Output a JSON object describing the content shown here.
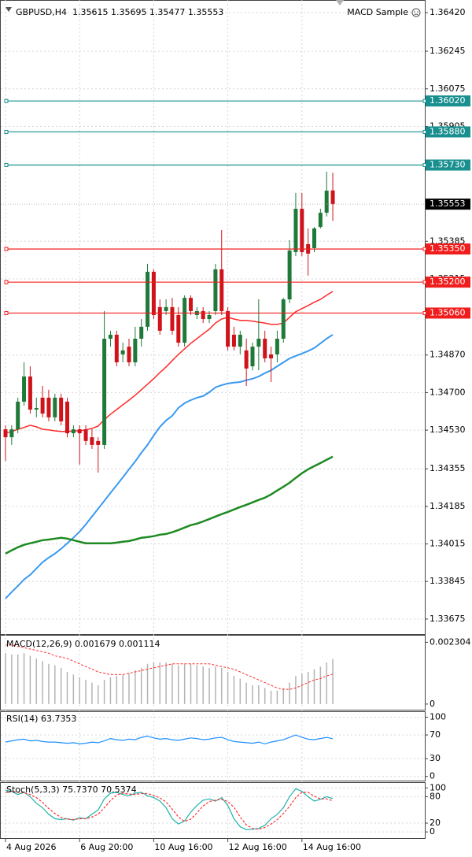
{
  "chart_data": [
    {
      "type": "candlestick",
      "title": "GBPUSD,H4  1.35615 1.35695 1.35477 1.35553",
      "expert": "MACD Sample",
      "categories": [
        "4 Aug 2026",
        null,
        null,
        null,
        null,
        null,
        null,
        null,
        null,
        null,
        null,
        null,
        "6 Aug 20:00",
        null,
        null,
        null,
        null,
        null,
        null,
        null,
        null,
        null,
        null,
        null,
        "10 Aug 16:00",
        null,
        null,
        null,
        null,
        null,
        null,
        null,
        null,
        null,
        null,
        null,
        "12 Aug 16:00",
        null,
        null,
        null,
        null,
        null,
        null,
        null,
        null,
        null,
        null,
        null,
        "14 Aug 16:00",
        null,
        null,
        null,
        null,
        null
      ],
      "open": [
        1.34534,
        1.34498,
        1.34534,
        1.34659,
        1.34773,
        1.34623,
        1.34677,
        1.34677,
        1.34588,
        1.34677,
        1.34659,
        1.34516,
        1.34534,
        1.34534,
        1.34498,
        1.34481,
        1.34463,
        1.34944,
        1.34962,
        1.34873,
        1.34908,
        1.34837,
        1.34944,
        1.34998,
        1.35247,
        1.35087,
        1.35069,
        1.35087,
        1.35051,
        1.34926,
        1.35129,
        1.35051,
        1.35069,
        1.35033,
        1.35069,
        1.35258,
        1.35069,
        1.34962,
        1.34908,
        1.34891,
        1.34819,
        1.34908,
        1.34944,
        1.34873,
        1.34873,
        1.34944,
        1.35122,
        1.35336,
        1.35532,
        1.35372,
        1.35354,
        1.3545,
        1.35514,
        1.35615
      ],
      "high": [
        1.34552,
        1.34552,
        1.34677,
        1.34837,
        1.34819,
        1.34677,
        1.3473,
        1.34713,
        1.34695,
        1.34695,
        1.34677,
        1.34552,
        1.34552,
        1.34552,
        1.34534,
        1.34498,
        1.35069,
        1.3498,
        1.3498,
        1.34926,
        1.34944,
        1.34998,
        1.35033,
        1.35283,
        1.35258,
        1.35122,
        1.35122,
        1.35129,
        1.35087,
        1.3514,
        1.3514,
        1.35087,
        1.35087,
        1.35069,
        1.35283,
        1.35436,
        1.35087,
        1.34998,
        1.3498,
        1.34944,
        1.34926,
        1.35122,
        1.3498,
        1.34908,
        1.3498,
        1.35129,
        1.3539,
        1.35604,
        1.35604,
        1.35443,
        1.3545,
        1.35532,
        1.357,
        1.35695
      ],
      "low": [
        1.34391,
        1.34463,
        1.34516,
        1.34641,
        1.34605,
        1.34588,
        1.34588,
        1.3457,
        1.3457,
        1.34552,
        1.34498,
        1.34498,
        1.34374,
        1.34463,
        1.34445,
        1.34338,
        1.34445,
        1.34908,
        1.34819,
        1.34837,
        1.34819,
        1.34819,
        1.34908,
        1.3498,
        1.35033,
        1.34962,
        1.35051,
        1.34962,
        1.34908,
        1.34908,
        1.35051,
        1.35033,
        1.35015,
        1.35015,
        1.35051,
        1.35051,
        1.34891,
        1.34891,
        1.34873,
        1.3473,
        1.34801,
        1.34801,
        1.34837,
        1.34748,
        1.34837,
        1.34926,
        1.35105,
        1.35318,
        1.35318,
        1.35229,
        1.35336,
        1.35443,
        1.35497,
        1.35477
      ],
      "close": [
        1.34498,
        1.34534,
        1.34659,
        1.34773,
        1.34623,
        1.3463,
        1.34605,
        1.34588,
        1.34677,
        1.3457,
        1.34516,
        1.34534,
        1.34516,
        1.34481,
        1.34463,
        1.34463,
        1.34944,
        1.34962,
        1.34837,
        1.34891,
        1.34837,
        1.34944,
        1.34998,
        1.35247,
        1.35051,
        1.3498,
        1.35087,
        1.3498,
        1.34926,
        1.35129,
        1.35069,
        1.35069,
        1.35033,
        1.35051,
        1.35258,
        1.35069,
        1.34908,
        1.34908,
        1.34962,
        1.34809,
        1.34908,
        1.34944,
        1.34855,
        1.34855,
        1.34944,
        1.35122,
        1.35343,
        1.35532,
        1.35336,
        1.35329,
        1.35443,
        1.35514,
        1.35614,
        1.35553
      ],
      "up_color": "#1f7a3a",
      "down_color": "#d0131b",
      "lines": [
        {
          "color": "#ff2a2a",
          "width": 1.5,
          "values": [
            1.34517,
            1.34524,
            1.34534,
            1.34542,
            1.34552,
            1.34545,
            1.34534,
            1.34531,
            1.34527,
            1.34524,
            1.34524,
            1.34527,
            1.34527,
            1.34531,
            1.34538,
            1.34549,
            1.34577,
            1.34602,
            1.34623,
            1.34645,
            1.34666,
            1.34688,
            1.34713,
            1.34738,
            1.34763,
            1.34791,
            1.34816,
            1.34845,
            1.34873,
            1.34898,
            1.34923,
            1.34944,
            1.34966,
            1.34987,
            1.35015,
            1.35033,
            1.35041,
            1.35033,
            1.35027,
            1.35027,
            1.35023,
            1.35019,
            1.35015,
            1.35009,
            1.35009,
            1.35015,
            1.35041,
            1.35066,
            1.3508,
            1.35094,
            1.35109,
            1.35122,
            1.35141,
            1.35158
          ]
        },
        {
          "color": "#3a9af0",
          "width": 2,
          "values": [
            1.33768,
            1.33797,
            1.33825,
            1.33854,
            1.33875,
            1.33904,
            1.33932,
            1.33953,
            1.33971,
            1.33993,
            1.34018,
            1.34043,
            1.34071,
            1.34103,
            1.34139,
            1.34175,
            1.3421,
            1.34246,
            1.34281,
            1.34317,
            1.34353,
            1.34388,
            1.34428,
            1.34463,
            1.34506,
            1.34545,
            1.34574,
            1.34595,
            1.34631,
            1.34652,
            1.34666,
            1.34677,
            1.34684,
            1.34702,
            1.34724,
            1.34734,
            1.34741,
            1.34745,
            1.34748,
            1.34756,
            1.34763,
            1.34773,
            1.34788,
            1.34801,
            1.34819,
            1.34837,
            1.34855,
            1.34866,
            1.34877,
            1.34888,
            1.34902,
            1.34923,
            1.34944,
            1.34962
          ]
        },
        {
          "color": "#1d8a22",
          "width": 2.5,
          "values": [
            1.33971,
            1.33986,
            1.34,
            1.34011,
            1.34018,
            1.34025,
            1.34032,
            1.34035,
            1.34039,
            1.34043,
            1.34039,
            1.34032,
            1.34025,
            1.34018,
            1.34018,
            1.34018,
            1.34018,
            1.34018,
            1.34021,
            1.34025,
            1.34028,
            1.34035,
            1.34043,
            1.34046,
            1.3405,
            1.34057,
            1.3406,
            1.34068,
            1.34078,
            1.34089,
            1.341,
            1.34107,
            1.34117,
            1.34128,
            1.34139,
            1.3415,
            1.3416,
            1.34171,
            1.34182,
            1.34192,
            1.34203,
            1.34214,
            1.34224,
            1.34239,
            1.34257,
            1.34274,
            1.34292,
            1.34314,
            1.34335,
            1.34353,
            1.34367,
            1.34381,
            1.34396,
            1.3441
          ]
        }
      ],
      "levels": [
        {
          "value": 1.3602,
          "label": "1.36020",
          "color": "#198f8f"
        },
        {
          "value": 1.3588,
          "label": "1.35880",
          "color": "#198f8f"
        },
        {
          "value": 1.3573,
          "label": "1.35730",
          "color": "#198f8f"
        },
        {
          "value": 1.3535,
          "label": "1.35350",
          "color": "#f01d1d"
        },
        {
          "value": 1.352,
          "label": "1.35200",
          "color": "#f01d1d"
        },
        {
          "value": 1.3506,
          "label": "1.35060",
          "color": "#f01d1d"
        }
      ],
      "last_price": 1.35553,
      "ylim": [
        1.33607,
        1.36477
      ],
      "yticks": [
        {
          "value": 1.3642,
          "label": "1.36420"
        },
        1.36245,
        1.36075,
        1.35905,
        1.35385,
        1.35215,
        {
          "value": 1.3487,
          "label": "1.34870"
        },
        {
          "value": 1.347,
          "label": "1.34700"
        },
        {
          "value": 1.3453,
          "label": "1.34530"
        },
        1.34355,
        1.34185,
        1.34015,
        1.33845,
        1.33675
      ],
      "grid": true
    },
    {
      "type": "macd",
      "title": "MACD(12,26,9) 0.001679 0.001114",
      "values": [
        0.0019,
        0.00185,
        0.00185,
        0.0019,
        0.0018,
        0.0017,
        0.0016,
        0.0015,
        0.00145,
        0.00135,
        0.0012,
        0.0011,
        0.001,
        0.0009,
        0.0008,
        0.0007,
        0.0009,
        0.001,
        0.00105,
        0.0011,
        0.00115,
        0.00125,
        0.00135,
        0.0015,
        0.00155,
        0.00155,
        0.00155,
        0.0015,
        0.00145,
        0.0015,
        0.0015,
        0.00145,
        0.0014,
        0.00135,
        0.0014,
        0.00135,
        0.0012,
        0.00105,
        0.00095,
        0.0008,
        0.0007,
        0.0007,
        0.0006,
        0.0005,
        0.0005,
        0.0006,
        0.0008,
        0.00105,
        0.00115,
        0.0012,
        0.0013,
        0.0014,
        0.00155,
        0.001679
      ],
      "signal": [
        0.0022,
        0.0022,
        0.00215,
        0.0021,
        0.00205,
        0.002,
        0.00195,
        0.0019,
        0.0018,
        0.00175,
        0.0017,
        0.0016,
        0.0015,
        0.0014,
        0.0013,
        0.0012,
        0.00115,
        0.0011,
        0.0011,
        0.0011,
        0.00115,
        0.0012,
        0.00125,
        0.0013,
        0.00135,
        0.0014,
        0.00145,
        0.0015,
        0.0015,
        0.0015,
        0.0015,
        0.0015,
        0.0015,
        0.0015,
        0.00145,
        0.0014,
        0.00135,
        0.0013,
        0.0012,
        0.0011,
        0.001,
        0.0009,
        0.0008,
        0.0007,
        0.0006,
        0.00055,
        0.00055,
        0.0006,
        0.0007,
        0.0008,
        0.0009,
        0.00095,
        0.00105,
        0.001114
      ],
      "color": "#b4b4b4",
      "signal_color": "#ff3030",
      "ylim": [
        -0.00021,
        0.00258
      ],
      "yticks": [
        0.002304,
        0
      ]
    },
    {
      "type": "line",
      "title": "RSI(14) 63.7353",
      "series": [
        {
          "color": "#1e90ff",
          "dash": false,
          "values": [
            58,
            60,
            62,
            63,
            60,
            61,
            59,
            58,
            58,
            57,
            56,
            57,
            55,
            56,
            58,
            57,
            60,
            64,
            62,
            61,
            63,
            62,
            66,
            68,
            65,
            63,
            64,
            62,
            61,
            63,
            65,
            64,
            62,
            63,
            65,
            66,
            62,
            59,
            58,
            57,
            56,
            58,
            55,
            58,
            60,
            62,
            66,
            70,
            66,
            63,
            62,
            64,
            66,
            63.7353
          ]
        }
      ],
      "ylim": [
        -7,
        110
      ],
      "yticks": [
        100,
        70,
        30,
        0
      ],
      "grid": true
    },
    {
      "type": "line",
      "title": "Stoch(5,3,3) 75.7370 70.5374",
      "series": [
        {
          "color": "#20b2aa",
          "dash": false,
          "values": [
            95,
            92,
            85,
            90,
            80,
            65,
            55,
            40,
            30,
            28,
            30,
            27,
            32,
            30,
            40,
            50,
            75,
            88,
            90,
            85,
            82,
            88,
            90,
            82,
            78,
            70,
            55,
            30,
            18,
            25,
            45,
            60,
            72,
            75,
            70,
            78,
            60,
            30,
            12,
            5,
            6,
            8,
            15,
            30,
            40,
            55,
            80,
            98,
            92,
            80,
            70,
            74,
            80,
            75.737
          ]
        },
        {
          "color": "#ff3030",
          "dash": true,
          "values": [
            90,
            92,
            90,
            89,
            85,
            78,
            67,
            53,
            42,
            33,
            29,
            28,
            30,
            30,
            34,
            40,
            55,
            71,
            84,
            88,
            86,
            85,
            87,
            87,
            83,
            77,
            68,
            52,
            34,
            24,
            29,
            43,
            59,
            69,
            72,
            74,
            69,
            56,
            34,
            16,
            8,
            6,
            10,
            18,
            28,
            42,
            58,
            78,
            90,
            90,
            81,
            75,
            75,
            70.5374
          ]
        }
      ],
      "ylim": [
        -14,
        113
      ],
      "yticks": [
        100,
        80,
        20,
        0
      ],
      "grid": true
    }
  ]
}
